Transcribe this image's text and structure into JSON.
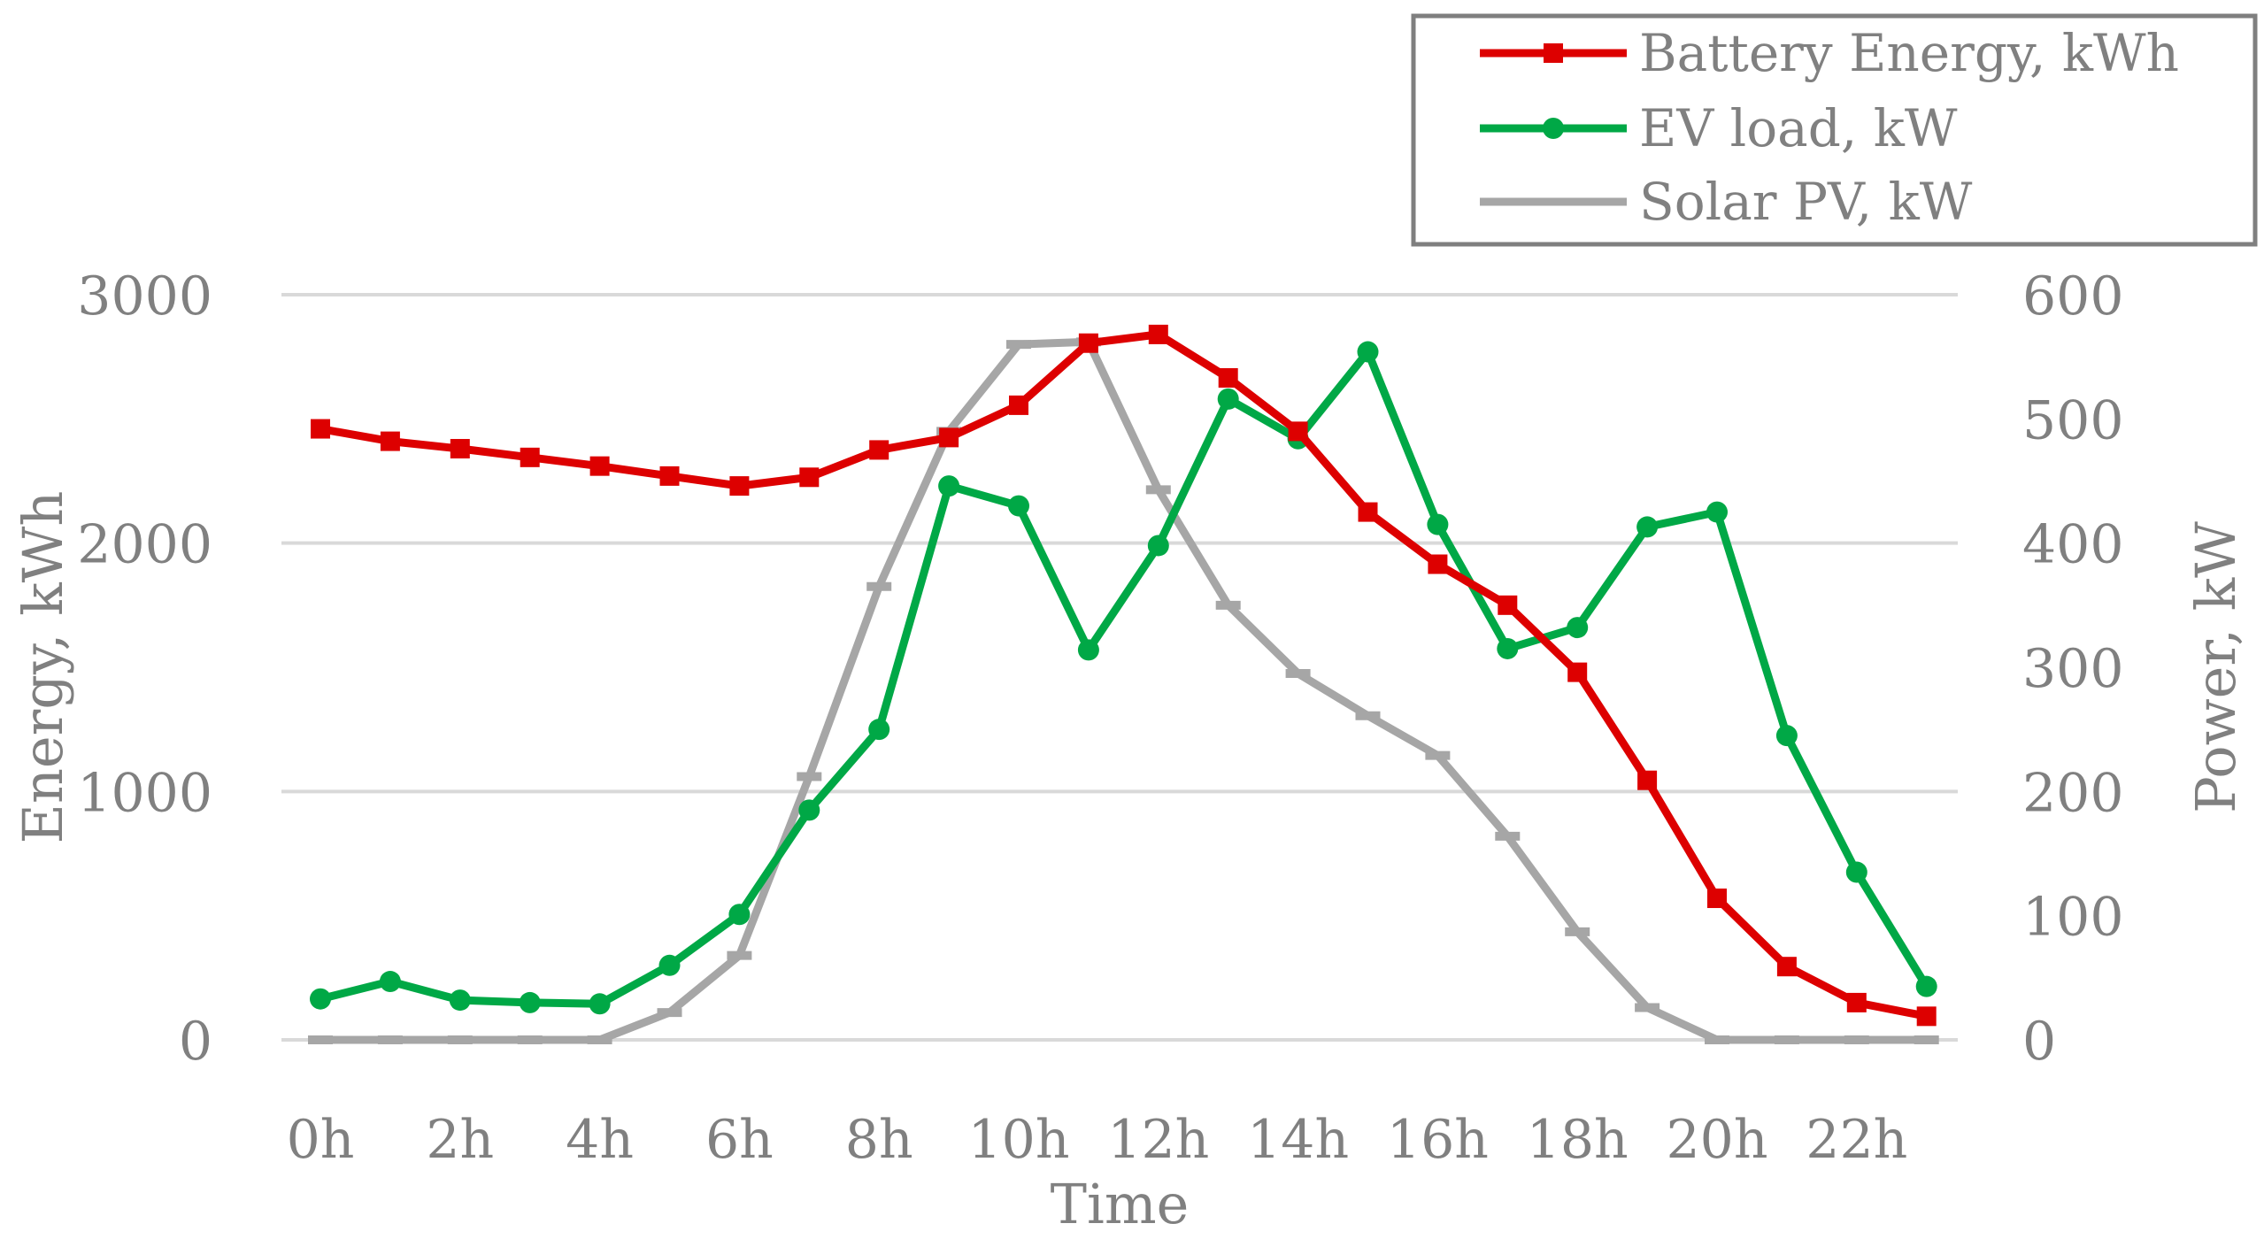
{
  "chart_data": {
    "type": "line",
    "title": "",
    "categories": [
      "0h",
      "1h",
      "2h",
      "3h",
      "4h",
      "5h",
      "6h",
      "7h",
      "8h",
      "9h",
      "10h",
      "11h",
      "12h",
      "13h",
      "14h",
      "15h",
      "16h",
      "17h",
      "18h",
      "19h",
      "20h",
      "21h",
      "22h",
      "23h"
    ],
    "x_tick_labels": [
      "0h",
      "2h",
      "4h",
      "6h",
      "8h",
      "10h",
      "12h",
      "14h",
      "16h",
      "18h",
      "20h",
      "22h"
    ],
    "xlabel": "Time",
    "ylabel_left": "Energy, kWh",
    "ylabel_right": "Power, kW",
    "ylim_left": [
      0,
      3000
    ],
    "ylim_right": [
      0,
      600
    ],
    "y_ticks_left": [
      "0",
      "1000",
      "2000",
      "3000"
    ],
    "y_ticks_right": [
      "0",
      "100",
      "200",
      "300",
      "400",
      "500",
      "600"
    ],
    "grid": true,
    "legend_position": "top-right",
    "series": [
      {
        "name": "Battery Energy, kWh",
        "axis": "left",
        "color": "#dd0000",
        "marker": "square",
        "values": [
          2460,
          2410,
          2380,
          2345,
          2310,
          2270,
          2230,
          2265,
          2375,
          2425,
          2555,
          2805,
          2840,
          2665,
          2450,
          2125,
          1915,
          1750,
          1480,
          1045,
          570,
          295,
          150,
          95
        ]
      },
      {
        "name": "EV load, kW",
        "axis": "right",
        "color": "#00a846",
        "marker": "circle",
        "values": [
          33,
          47,
          32,
          30,
          29,
          60,
          101,
          185,
          250,
          446,
          430,
          314,
          398,
          516,
          484,
          554,
          415,
          315,
          332,
          413,
          425,
          245,
          135,
          43
        ]
      },
      {
        "name": "Solar PV, kW",
        "axis": "right",
        "color": "#a6a6a6",
        "marker": "dash",
        "values": [
          0,
          0,
          0,
          0,
          0,
          22,
          68,
          212,
          365,
          490,
          560,
          562,
          443,
          350,
          295,
          261,
          229,
          164,
          87,
          26,
          0,
          0,
          0,
          0
        ]
      }
    ]
  }
}
